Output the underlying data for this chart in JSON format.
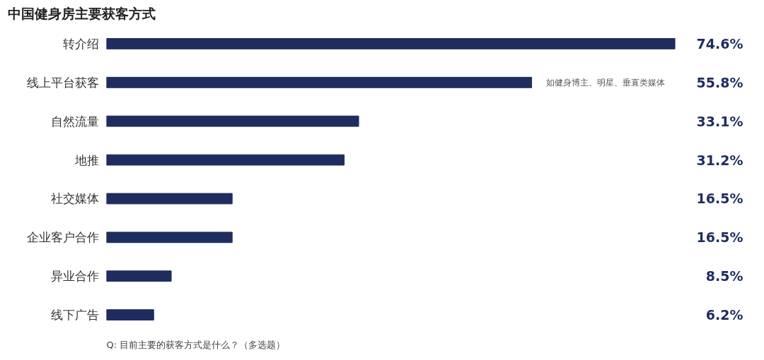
{
  "chart_data": {
    "type": "bar",
    "orientation": "horizontal",
    "title": "中国健身房主要获客方式",
    "categories": [
      "转介绍",
      "线上平台获客",
      "自然流量",
      "地推",
      "社交媒体",
      "企业客户合作",
      "异业合作",
      "线下广告"
    ],
    "values": [
      74.6,
      55.8,
      33.1,
      31.2,
      16.5,
      16.5,
      8.5,
      6.2
    ],
    "value_labels": [
      "74.6%",
      "55.8%",
      "33.1%",
      "31.2%",
      "16.5%",
      "16.5%",
      "8.5%",
      "6.2%"
    ],
    "color": "#1f2d5e",
    "annotations": [
      {
        "text": "如健身博主、明星、垂直类媒体",
        "x": 55.8,
        "y": "线上平台获客"
      },
      "Q: 目前主要的获客方式是什么？（多选题）"
    ],
    "grid": false
  }
}
